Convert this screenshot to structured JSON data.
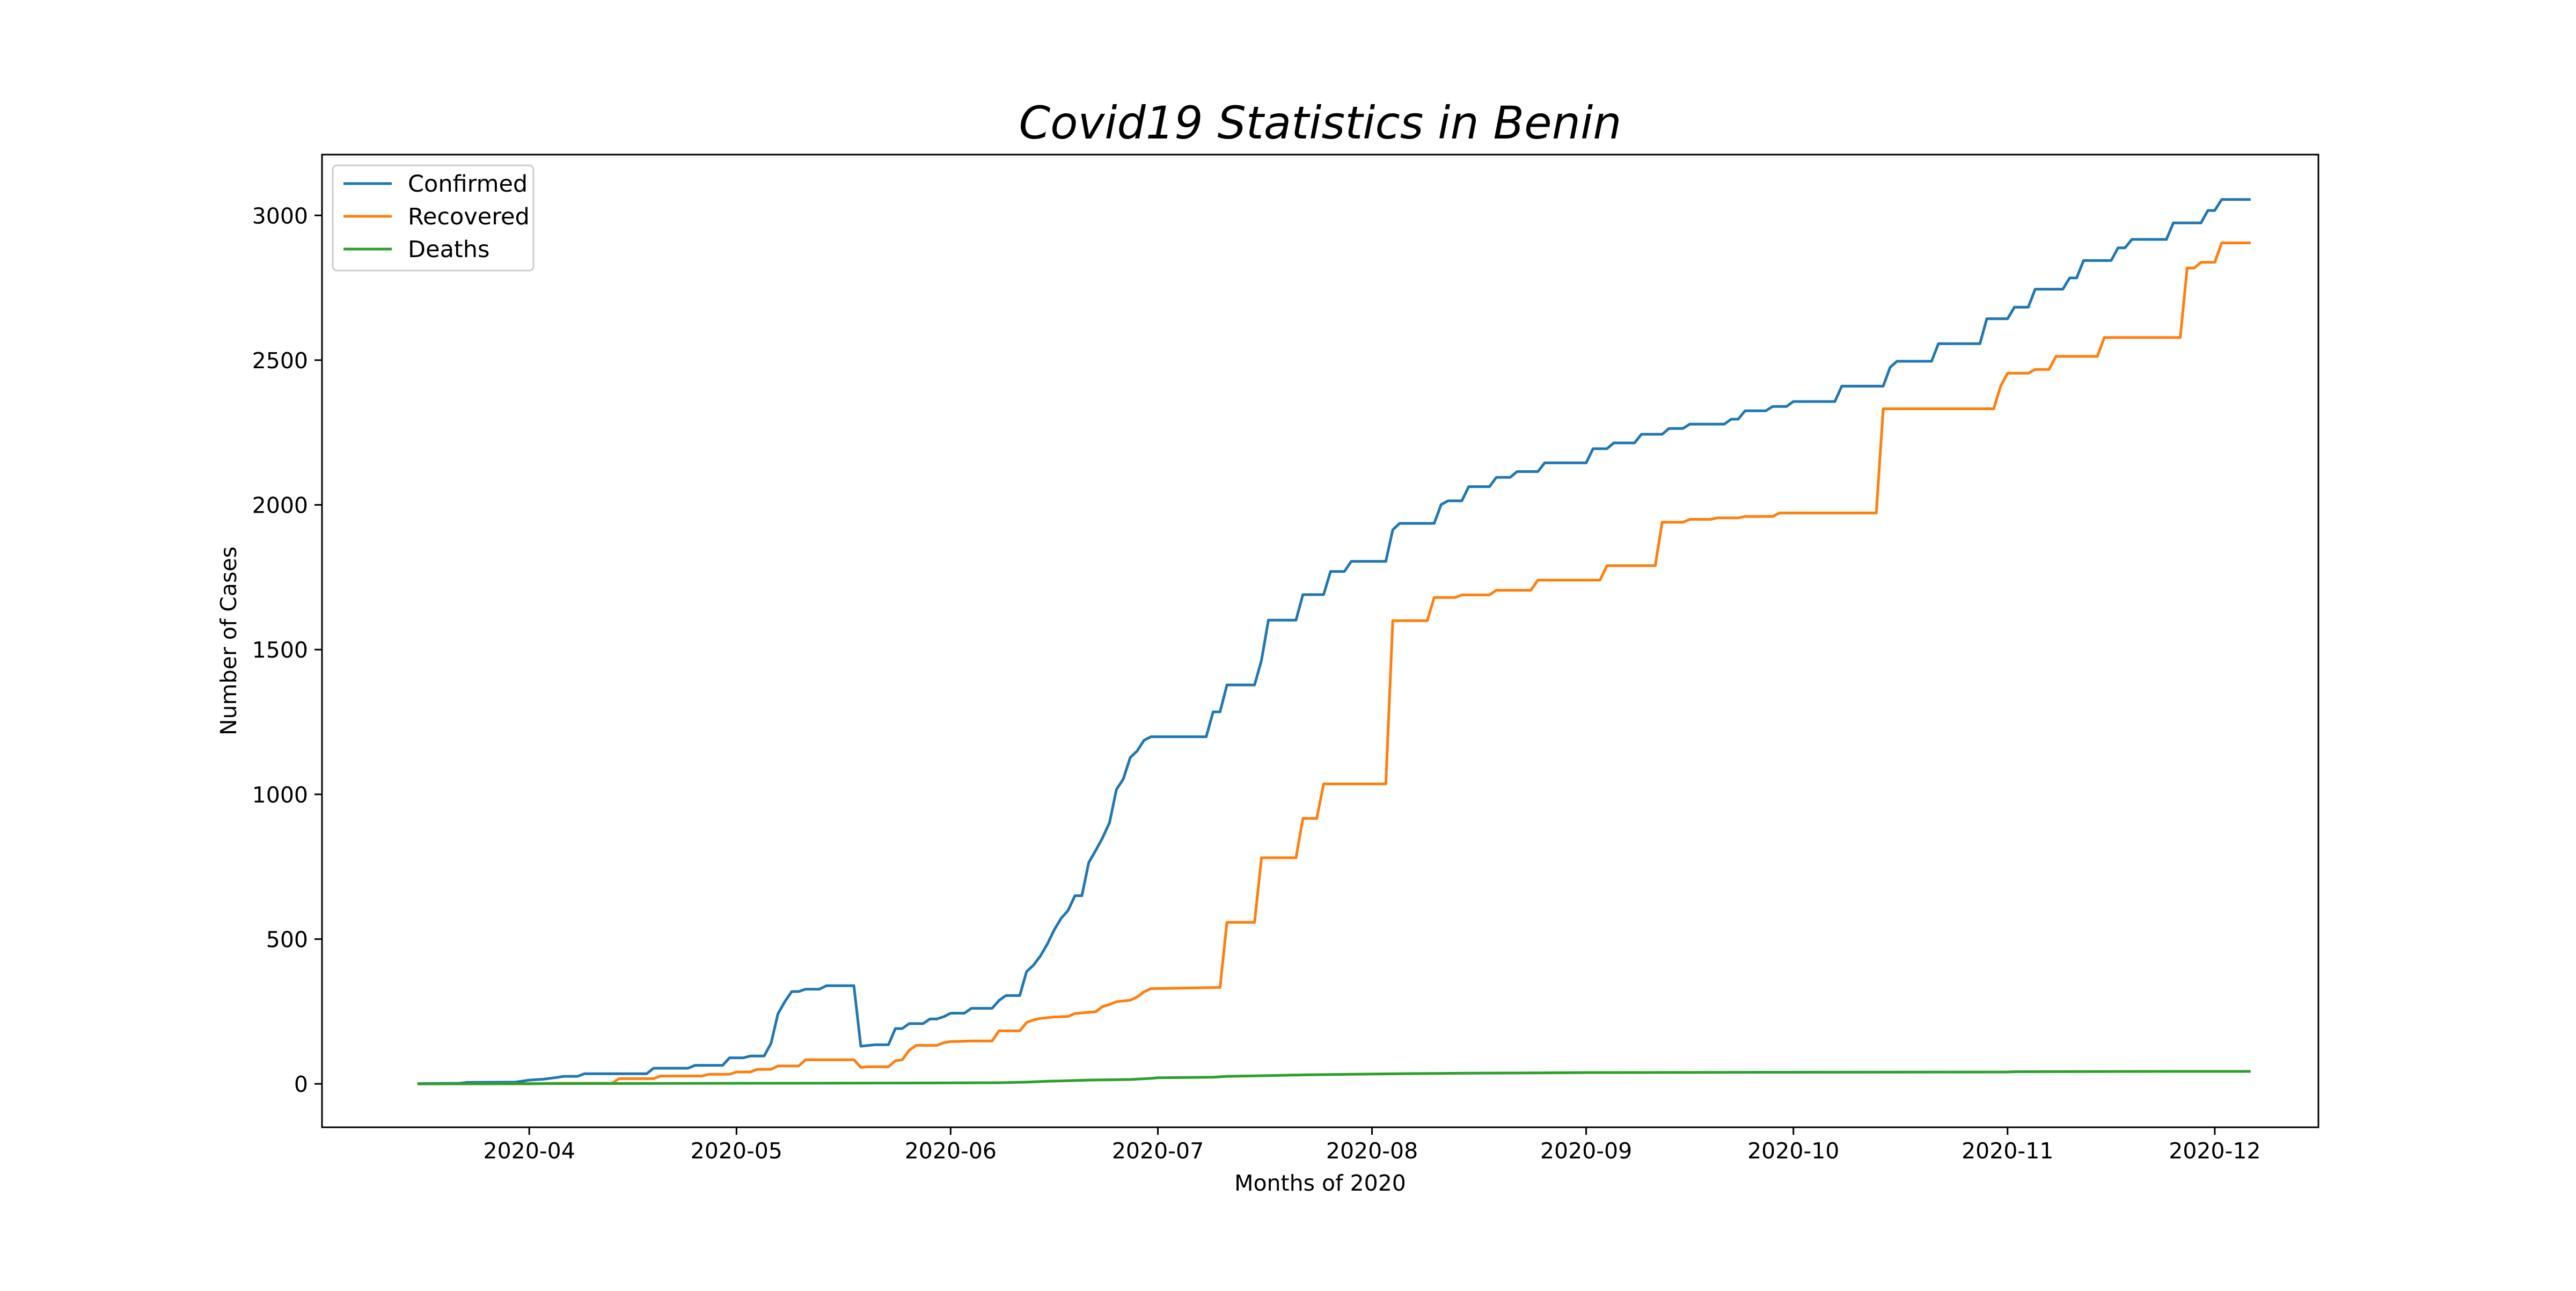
{
  "chart_data": {
    "type": "line",
    "title": "Covid19 Statistics in Benin",
    "xlabel": "Months of 2020",
    "ylabel": "Number of Cases",
    "x_axis_type": "date",
    "xlim": [
      "2020-03-02",
      "2020-12-16"
    ],
    "ylim": [
      -150,
      3210
    ],
    "x_ticks": [
      "2020-04-01",
      "2020-05-01",
      "2020-06-01",
      "2020-07-01",
      "2020-08-01",
      "2020-09-01",
      "2020-10-01",
      "2020-11-01",
      "2020-12-01"
    ],
    "x_tick_labels": [
      "2020-04",
      "2020-05",
      "2020-06",
      "2020-07",
      "2020-08",
      "2020-09",
      "2020-10",
      "2020-11",
      "2020-12"
    ],
    "y_ticks": [
      0,
      500,
      1000,
      1500,
      2000,
      2500,
      3000
    ],
    "y_tick_labels": [
      "0",
      "500",
      "1000",
      "1500",
      "2000",
      "2500",
      "3000"
    ],
    "grid": false,
    "legend_position": "top-left",
    "series": [
      {
        "name": "Confirmed",
        "color": "#1f77b4",
        "points": [
          [
            "2020-03-16",
            1
          ],
          [
            "2020-03-22",
            2
          ],
          [
            "2020-03-23",
            5
          ],
          [
            "2020-03-30",
            6
          ],
          [
            "2020-04-01",
            13
          ],
          [
            "2020-04-03",
            16
          ],
          [
            "2020-04-05",
            22
          ],
          [
            "2020-04-06",
            26
          ],
          [
            "2020-04-08",
            26
          ],
          [
            "2020-04-09",
            35
          ],
          [
            "2020-04-14",
            35
          ],
          [
            "2020-04-16",
            35
          ],
          [
            "2020-04-18",
            35
          ],
          [
            "2020-04-19",
            54
          ],
          [
            "2020-04-24",
            54
          ],
          [
            "2020-04-25",
            64
          ],
          [
            "2020-04-29",
            64
          ],
          [
            "2020-04-30",
            90
          ],
          [
            "2020-05-02",
            90
          ],
          [
            "2020-05-03",
            96
          ],
          [
            "2020-05-05",
            96
          ],
          [
            "2020-05-06",
            140
          ],
          [
            "2020-05-07",
            242
          ],
          [
            "2020-05-08",
            284
          ],
          [
            "2020-05-09",
            319
          ],
          [
            "2020-05-10",
            319
          ],
          [
            "2020-05-11",
            327
          ],
          [
            "2020-05-13",
            327
          ],
          [
            "2020-05-14",
            339
          ],
          [
            "2020-05-17",
            339
          ],
          [
            "2020-05-18",
            339
          ],
          [
            "2020-05-19",
            130
          ],
          [
            "2020-05-21",
            135
          ],
          [
            "2020-05-23",
            135
          ],
          [
            "2020-05-24",
            191
          ],
          [
            "2020-05-25",
            191
          ],
          [
            "2020-05-26",
            208
          ],
          [
            "2020-05-28",
            208
          ],
          [
            "2020-05-29",
            224
          ],
          [
            "2020-05-30",
            224
          ],
          [
            "2020-05-31",
            232
          ],
          [
            "2020-06-01",
            244
          ],
          [
            "2020-06-03",
            244
          ],
          [
            "2020-06-04",
            261
          ],
          [
            "2020-06-07",
            261
          ],
          [
            "2020-06-08",
            288
          ],
          [
            "2020-06-09",
            305
          ],
          [
            "2020-06-11",
            305
          ],
          [
            "2020-06-12",
            388
          ],
          [
            "2020-06-13",
            410
          ],
          [
            "2020-06-14",
            442
          ],
          [
            "2020-06-15",
            483
          ],
          [
            "2020-06-16",
            532
          ],
          [
            "2020-06-17",
            572
          ],
          [
            "2020-06-18",
            599
          ],
          [
            "2020-06-19",
            650
          ],
          [
            "2020-06-20",
            650
          ],
          [
            "2020-06-21",
            765
          ],
          [
            "2020-06-22",
            806
          ],
          [
            "2020-06-23",
            850
          ],
          [
            "2020-06-24",
            902
          ],
          [
            "2020-06-25",
            1017
          ],
          [
            "2020-06-26",
            1053
          ],
          [
            "2020-06-27",
            1127
          ],
          [
            "2020-06-28",
            1150
          ],
          [
            "2020-06-29",
            1187
          ],
          [
            "2020-06-30",
            1199
          ],
          [
            "2020-07-01",
            1199
          ],
          [
            "2020-07-08",
            1199
          ],
          [
            "2020-07-09",
            1285
          ],
          [
            "2020-07-10",
            1285
          ],
          [
            "2020-07-11",
            1378
          ],
          [
            "2020-07-15",
            1378
          ],
          [
            "2020-07-16",
            1463
          ],
          [
            "2020-07-17",
            1602
          ],
          [
            "2020-07-21",
            1602
          ],
          [
            "2020-07-22",
            1690
          ],
          [
            "2020-07-25",
            1690
          ],
          [
            "2020-07-26",
            1770
          ],
          [
            "2020-07-28",
            1770
          ],
          [
            "2020-07-29",
            1805
          ],
          [
            "2020-08-03",
            1805
          ],
          [
            "2020-08-04",
            1914
          ],
          [
            "2020-08-05",
            1936
          ],
          [
            "2020-08-10",
            1936
          ],
          [
            "2020-08-11",
            2001
          ],
          [
            "2020-08-12",
            2014
          ],
          [
            "2020-08-14",
            2014
          ],
          [
            "2020-08-15",
            2063
          ],
          [
            "2020-08-18",
            2063
          ],
          [
            "2020-08-19",
            2095
          ],
          [
            "2020-08-21",
            2095
          ],
          [
            "2020-08-22",
            2115
          ],
          [
            "2020-08-25",
            2115
          ],
          [
            "2020-08-26",
            2145
          ],
          [
            "2020-09-01",
            2145
          ],
          [
            "2020-09-02",
            2194
          ],
          [
            "2020-09-04",
            2194
          ],
          [
            "2020-09-05",
            2214
          ],
          [
            "2020-09-08",
            2214
          ],
          [
            "2020-09-09",
            2244
          ],
          [
            "2020-09-12",
            2244
          ],
          [
            "2020-09-13",
            2264
          ],
          [
            "2020-09-15",
            2264
          ],
          [
            "2020-09-16",
            2279
          ],
          [
            "2020-09-21",
            2279
          ],
          [
            "2020-09-22",
            2296
          ],
          [
            "2020-09-23",
            2296
          ],
          [
            "2020-09-24",
            2325
          ],
          [
            "2020-09-27",
            2325
          ],
          [
            "2020-09-28",
            2340
          ],
          [
            "2020-09-30",
            2340
          ],
          [
            "2020-10-01",
            2357
          ],
          [
            "2020-10-07",
            2357
          ],
          [
            "2020-10-08",
            2410
          ],
          [
            "2020-10-14",
            2410
          ],
          [
            "2020-10-15",
            2475
          ],
          [
            "2020-10-16",
            2496
          ],
          [
            "2020-10-21",
            2496
          ],
          [
            "2020-10-22",
            2557
          ],
          [
            "2020-10-28",
            2557
          ],
          [
            "2020-10-29",
            2643
          ],
          [
            "2020-11-01",
            2643
          ],
          [
            "2020-11-02",
            2683
          ],
          [
            "2020-11-04",
            2683
          ],
          [
            "2020-11-05",
            2745
          ],
          [
            "2020-11-09",
            2745
          ],
          [
            "2020-11-10",
            2784
          ],
          [
            "2020-11-11",
            2784
          ],
          [
            "2020-11-12",
            2844
          ],
          [
            "2020-11-16",
            2844
          ],
          [
            "2020-11-17",
            2888
          ],
          [
            "2020-11-18",
            2888
          ],
          [
            "2020-11-19",
            2917
          ],
          [
            "2020-11-24",
            2917
          ],
          [
            "2020-11-25",
            2974
          ],
          [
            "2020-11-29",
            2974
          ],
          [
            "2020-11-30",
            3017
          ],
          [
            "2020-12-01",
            3017
          ],
          [
            "2020-12-02",
            3055
          ],
          [
            "2020-12-06",
            3055
          ]
        ]
      },
      {
        "name": "Recovered",
        "color": "#ff7f0e",
        "points": [
          [
            "2020-03-16",
            0
          ],
          [
            "2020-04-01",
            0
          ],
          [
            "2020-04-05",
            2
          ],
          [
            "2020-04-13",
            2
          ],
          [
            "2020-04-14",
            18
          ],
          [
            "2020-04-19",
            18
          ],
          [
            "2020-04-20",
            27
          ],
          [
            "2020-04-26",
            27
          ],
          [
            "2020-04-27",
            33
          ],
          [
            "2020-04-30",
            33
          ],
          [
            "2020-05-01",
            41
          ],
          [
            "2020-05-03",
            41
          ],
          [
            "2020-05-04",
            50
          ],
          [
            "2020-05-06",
            50
          ],
          [
            "2020-05-07",
            62
          ],
          [
            "2020-05-10",
            62
          ],
          [
            "2020-05-11",
            83
          ],
          [
            "2020-05-18",
            83
          ],
          [
            "2020-05-19",
            57
          ],
          [
            "2020-05-20",
            59
          ],
          [
            "2020-05-23",
            59
          ],
          [
            "2020-05-24",
            80
          ],
          [
            "2020-05-25",
            83
          ],
          [
            "2020-05-26",
            116
          ],
          [
            "2020-05-27",
            133
          ],
          [
            "2020-05-30",
            133
          ],
          [
            "2020-05-31",
            142
          ],
          [
            "2020-06-01",
            146
          ],
          [
            "2020-06-04",
            148
          ],
          [
            "2020-06-07",
            148
          ],
          [
            "2020-06-08",
            183
          ],
          [
            "2020-06-11",
            183
          ],
          [
            "2020-06-12",
            212
          ],
          [
            "2020-06-13",
            221
          ],
          [
            "2020-06-14",
            226
          ],
          [
            "2020-06-16",
            231
          ],
          [
            "2020-06-18",
            233
          ],
          [
            "2020-06-19",
            243
          ],
          [
            "2020-06-21",
            247
          ],
          [
            "2020-06-22",
            249
          ],
          [
            "2020-06-23",
            267
          ],
          [
            "2020-06-24",
            274
          ],
          [
            "2020-06-25",
            284
          ],
          [
            "2020-06-27",
            289
          ],
          [
            "2020-06-28",
            300
          ],
          [
            "2020-06-29",
            318
          ],
          [
            "2020-06-30",
            329
          ],
          [
            "2020-07-10",
            333
          ],
          [
            "2020-07-11",
            558
          ],
          [
            "2020-07-15",
            558
          ],
          [
            "2020-07-16",
            781
          ],
          [
            "2020-07-21",
            781
          ],
          [
            "2020-07-22",
            917
          ],
          [
            "2020-07-24",
            917
          ],
          [
            "2020-07-25",
            1036
          ],
          [
            "2020-08-03",
            1036
          ],
          [
            "2020-08-04",
            1600
          ],
          [
            "2020-08-09",
            1600
          ],
          [
            "2020-08-10",
            1680
          ],
          [
            "2020-08-13",
            1680
          ],
          [
            "2020-08-14",
            1689
          ],
          [
            "2020-08-18",
            1689
          ],
          [
            "2020-08-19",
            1705
          ],
          [
            "2020-08-24",
            1705
          ],
          [
            "2020-08-25",
            1740
          ],
          [
            "2020-09-03",
            1740
          ],
          [
            "2020-09-04",
            1790
          ],
          [
            "2020-09-11",
            1790
          ],
          [
            "2020-09-12",
            1940
          ],
          [
            "2020-09-15",
            1940
          ],
          [
            "2020-09-16",
            1950
          ],
          [
            "2020-09-19",
            1950
          ],
          [
            "2020-09-20",
            1955
          ],
          [
            "2020-09-23",
            1955
          ],
          [
            "2020-09-24",
            1960
          ],
          [
            "2020-09-28",
            1960
          ],
          [
            "2020-09-29",
            1972
          ],
          [
            "2020-10-13",
            1972
          ],
          [
            "2020-10-14",
            2332
          ],
          [
            "2020-10-30",
            2332
          ],
          [
            "2020-10-31",
            2410
          ],
          [
            "2020-11-01",
            2455
          ],
          [
            "2020-11-04",
            2455
          ],
          [
            "2020-11-05",
            2468
          ],
          [
            "2020-11-07",
            2468
          ],
          [
            "2020-11-08",
            2513
          ],
          [
            "2020-11-14",
            2513
          ],
          [
            "2020-11-15",
            2578
          ],
          [
            "2020-11-26",
            2578
          ],
          [
            "2020-11-27",
            2818
          ],
          [
            "2020-11-28",
            2818
          ],
          [
            "2020-11-29",
            2838
          ],
          [
            "2020-12-01",
            2838
          ],
          [
            "2020-12-02",
            2905
          ],
          [
            "2020-12-06",
            2905
          ]
        ]
      },
      {
        "name": "Deaths",
        "color": "#2ca02c",
        "points": [
          [
            "2020-03-16",
            0
          ],
          [
            "2020-04-05",
            1
          ],
          [
            "2020-05-06",
            2
          ],
          [
            "2020-05-28",
            3
          ],
          [
            "2020-06-08",
            4
          ],
          [
            "2020-06-12",
            6
          ],
          [
            "2020-06-15",
            9
          ],
          [
            "2020-06-18",
            11
          ],
          [
            "2020-06-21",
            13
          ],
          [
            "2020-06-27",
            15
          ],
          [
            "2020-06-30",
            19
          ],
          [
            "2020-07-01",
            21
          ],
          [
            "2020-07-09",
            23
          ],
          [
            "2020-07-11",
            26
          ],
          [
            "2020-07-16",
            28
          ],
          [
            "2020-07-22",
            31
          ],
          [
            "2020-07-29",
            33
          ],
          [
            "2020-08-05",
            35
          ],
          [
            "2020-08-15",
            37
          ],
          [
            "2020-08-26",
            38
          ],
          [
            "2020-09-01",
            39
          ],
          [
            "2020-10-01",
            40
          ],
          [
            "2020-11-01",
            41
          ],
          [
            "2020-11-02",
            42
          ],
          [
            "2020-11-26",
            43
          ],
          [
            "2020-12-06",
            43
          ]
        ]
      }
    ]
  }
}
